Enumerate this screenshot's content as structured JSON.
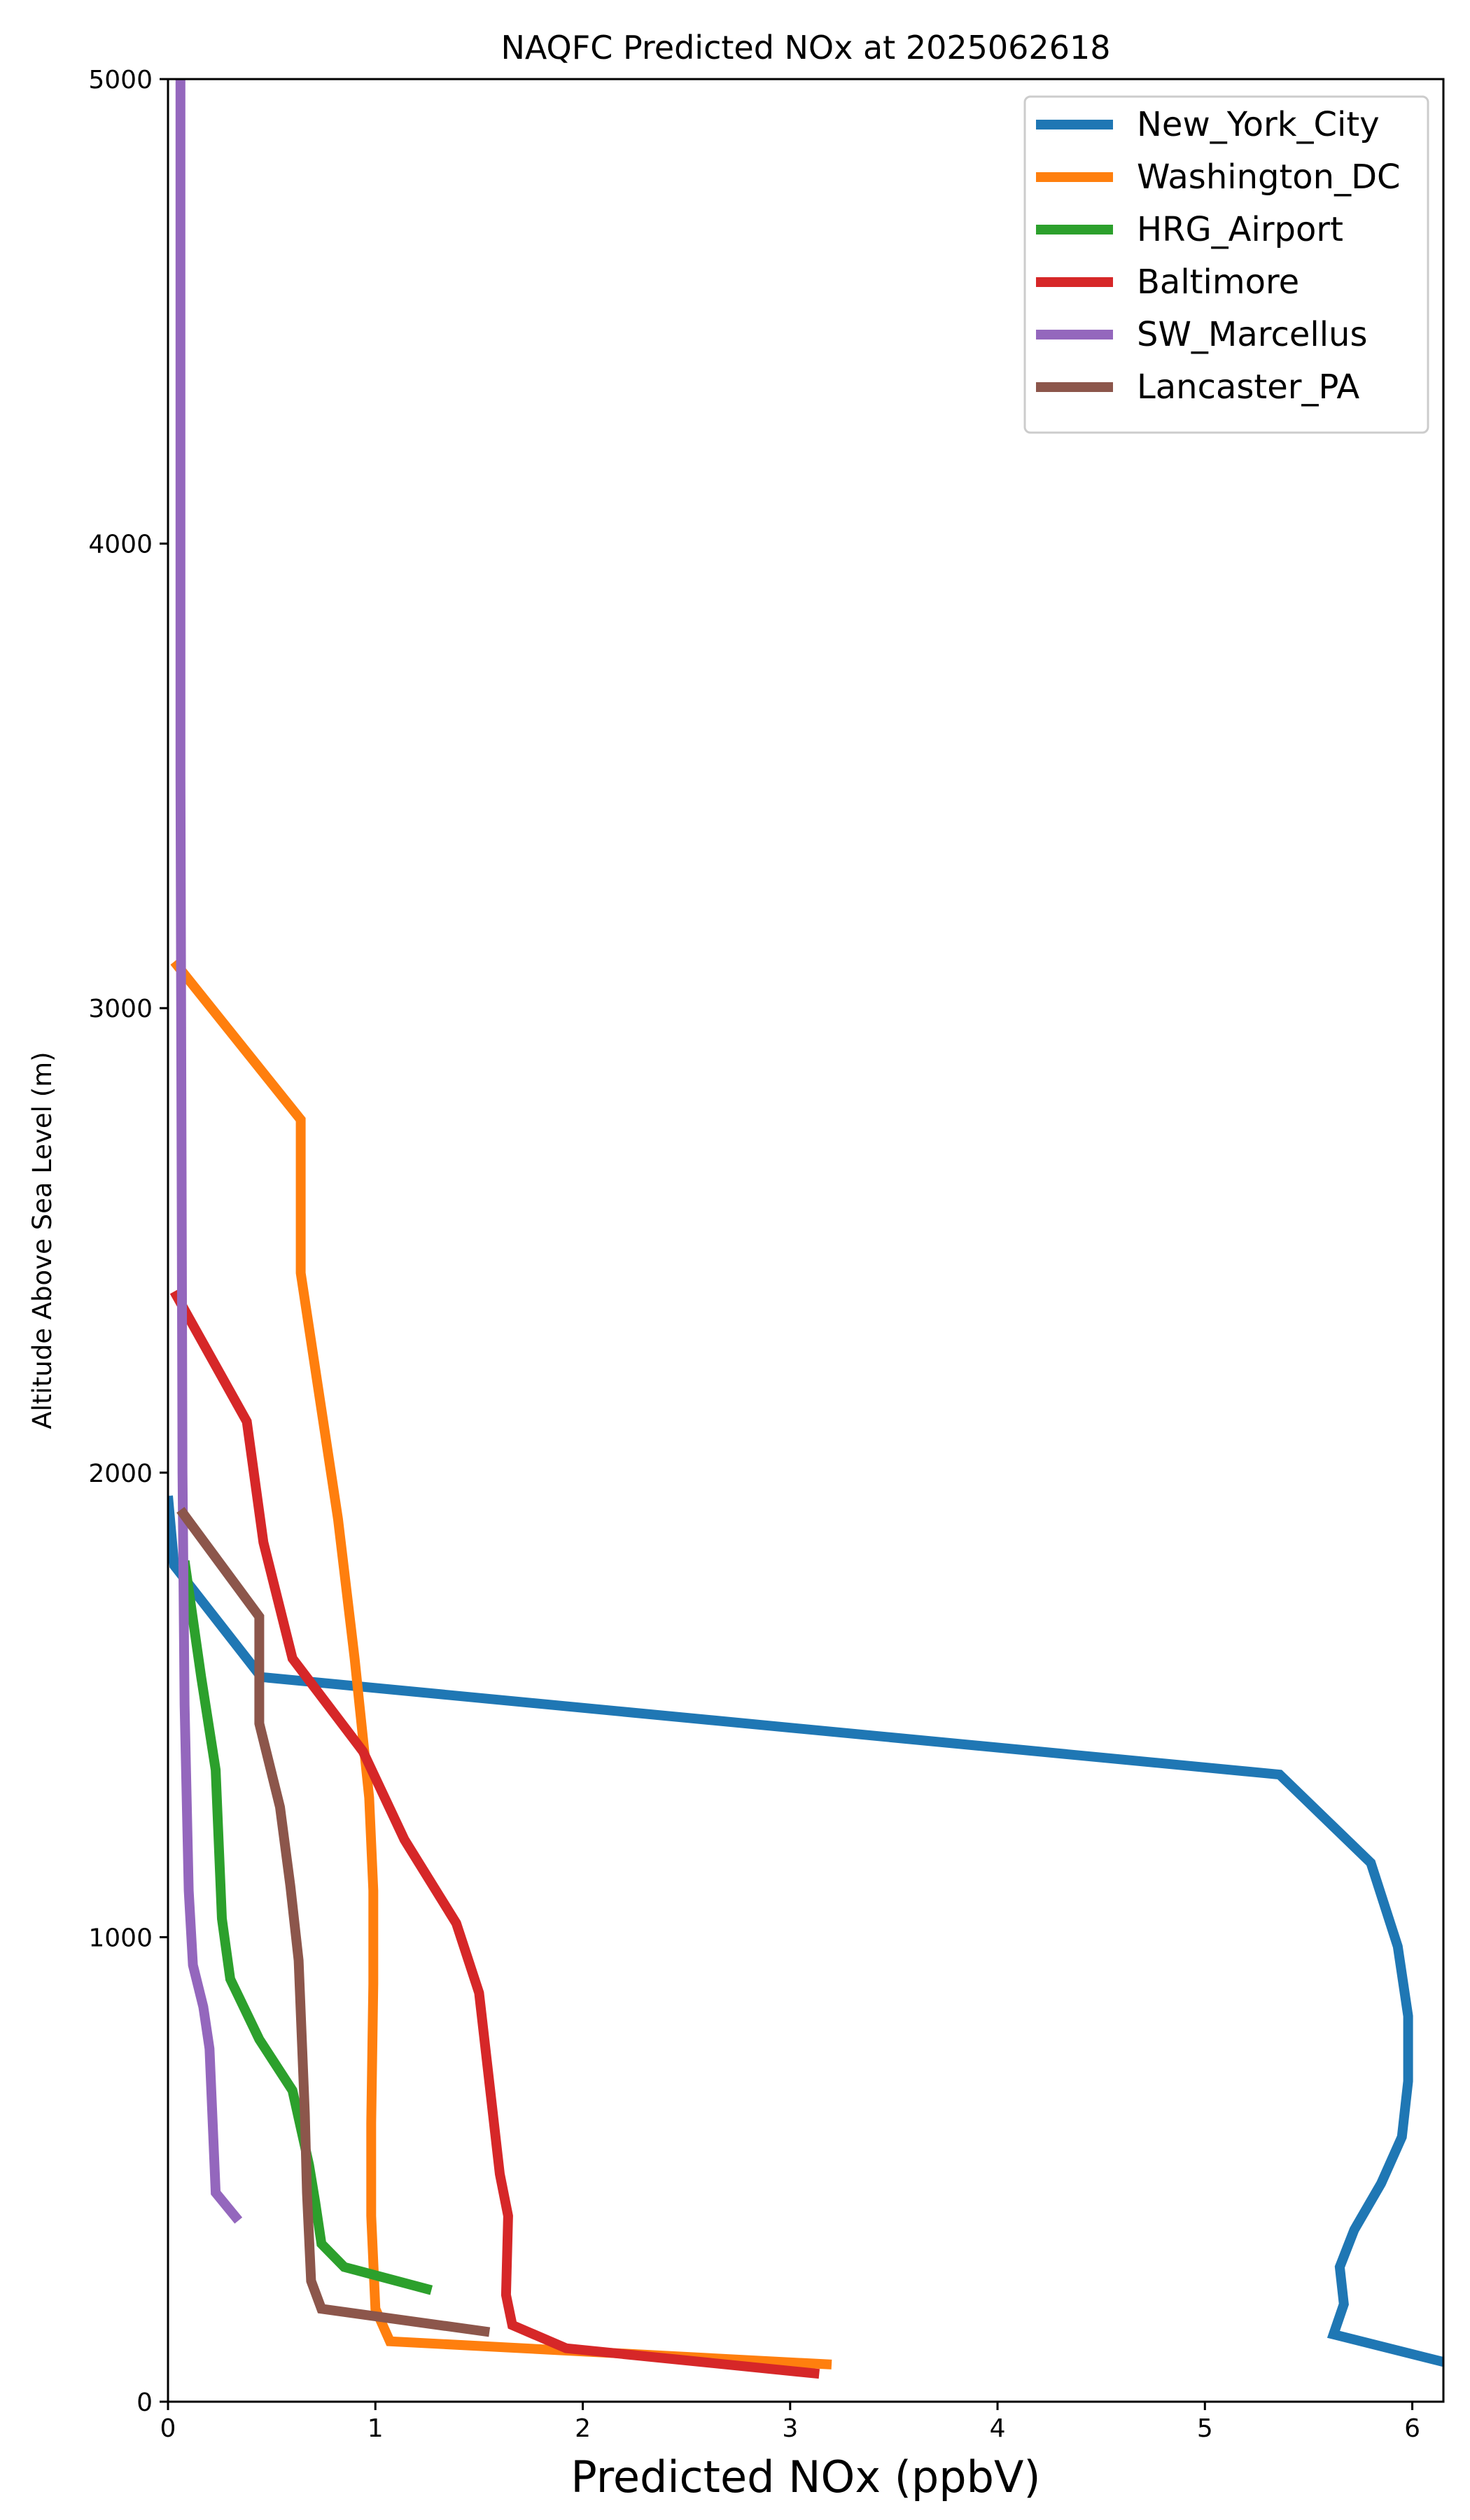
{
  "chart_data": {
    "type": "line",
    "title": "NAQFC Predicted NOx at 2025062618",
    "xlabel": "Predicted NOx (ppbV)",
    "ylabel": "Altitude Above Sea Level (m)",
    "xlim": [
      0,
      6.15
    ],
    "ylim": [
      0,
      5000
    ],
    "xticks": [
      0,
      1,
      2,
      3,
      4,
      5,
      6
    ],
    "yticks": [
      0,
      1000,
      2000,
      3000,
      4000,
      5000
    ],
    "grid": false,
    "legend_position": "top-right",
    "series": [
      {
        "name": "New_York_City",
        "color": "#1f77b4",
        "x": [
          6.2,
          5.62,
          5.67,
          5.65,
          5.72,
          5.85,
          5.95,
          5.98,
          5.98,
          5.93,
          5.8,
          5.36,
          0.45,
          0.03,
          0.0
        ],
        "y": [
          80,
          145,
          210,
          290,
          370,
          470,
          570,
          690,
          830,
          980,
          1160,
          1350,
          1560,
          1800,
          1950
        ]
      },
      {
        "name": "Washington_DC",
        "color": "#ff7f0e",
        "x": [
          3.2,
          1.07,
          1.0,
          0.98,
          0.98,
          0.99,
          0.99,
          0.97,
          0.9,
          0.82,
          0.64,
          0.64,
          0.03
        ],
        "y": [
          80,
          130,
          200,
          400,
          600,
          900,
          1100,
          1300,
          1600,
          1900,
          2430,
          2760,
          3100
        ]
      },
      {
        "name": "HRG_Airport",
        "color": "#2ca02c",
        "x": [
          1.27,
          0.85,
          0.74,
          0.71,
          0.68,
          0.6,
          0.44,
          0.3,
          0.26,
          0.23,
          0.16,
          0.08
        ],
        "y": [
          240,
          290,
          340,
          430,
          510,
          670,
          780,
          910,
          1040,
          1360,
          1560,
          1810
        ]
      },
      {
        "name": "Baltimore",
        "color": "#d62728",
        "x": [
          3.14,
          1.92,
          1.66,
          1.63,
          1.64,
          1.6,
          1.5,
          1.39,
          1.14,
          0.94,
          0.6,
          0.46,
          0.38,
          0.03
        ],
        "y": [
          60,
          115,
          165,
          230,
          400,
          490,
          880,
          1030,
          1210,
          1400,
          1600,
          1850,
          2110,
          2390
        ]
      },
      {
        "name": "SW_Marcellus",
        "color": "#9467bd",
        "x": [
          0.34,
          0.23,
          0.2,
          0.17,
          0.12,
          0.1,
          0.08,
          0.07,
          0.06,
          0.06
        ],
        "y": [
          390,
          450,
          760,
          850,
          940,
          1100,
          1500,
          2000,
          3500,
          5000
        ]
      },
      {
        "name": "Lancaster_PA",
        "color": "#8c564b",
        "x": [
          1.55,
          0.74,
          0.69,
          0.67,
          0.66,
          0.63,
          0.59,
          0.54,
          0.44,
          0.44,
          0.06
        ],
        "y": [
          150,
          200,
          260,
          450,
          620,
          950,
          1110,
          1280,
          1460,
          1690,
          1920
        ]
      }
    ]
  }
}
